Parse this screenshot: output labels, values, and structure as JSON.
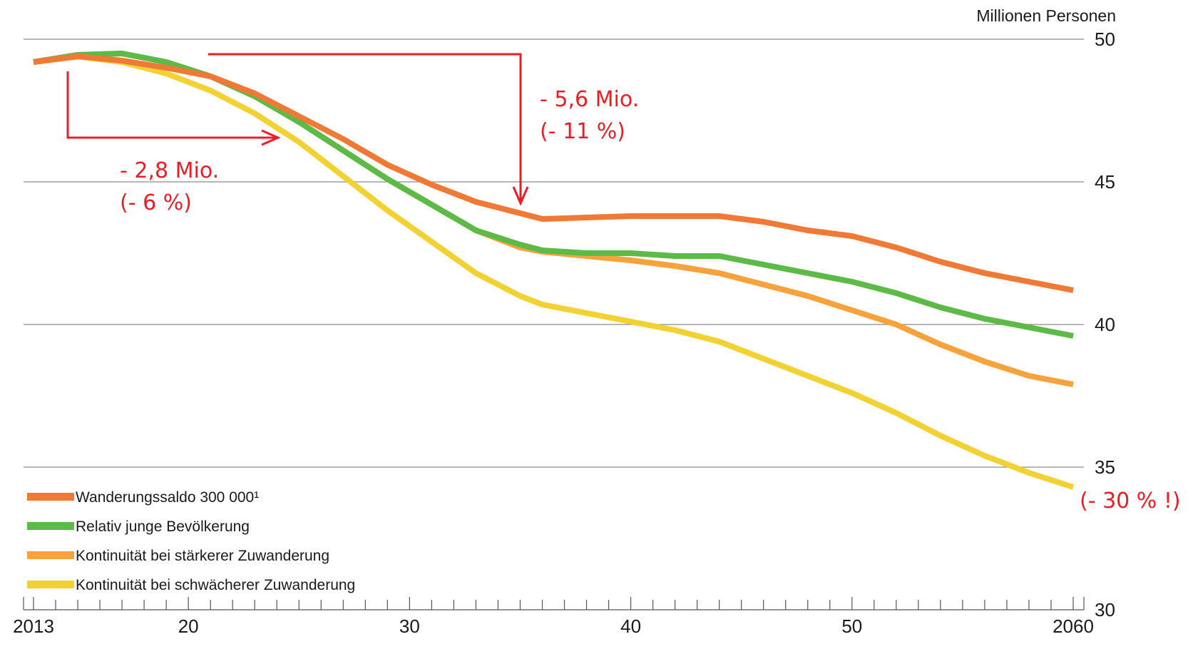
{
  "chart_data": {
    "type": "line",
    "title": "",
    "xlabel": "",
    "ylabel": "",
    "unit_label": "Millionen Personen",
    "xlim": [
      2013,
      2060
    ],
    "ylim": [
      30,
      50
    ],
    "x_ticks": [
      2013,
      2020,
      2030,
      2040,
      2050,
      2060
    ],
    "x_tick_labels": [
      "2013",
      "20",
      "30",
      "40",
      "50",
      "2060"
    ],
    "y_ticks": [
      30,
      35,
      40,
      45,
      50
    ],
    "y_tick_labels": [
      "30",
      "35",
      "40",
      "45",
      "50"
    ],
    "grid": true,
    "y_axis_position": "right",
    "legend_placement": "bottom-left",
    "series": [
      {
        "name": "Wanderungssaldo 300 000¹",
        "color": "#f07a35",
        "x": [
          2013,
          2015,
          2017,
          2019,
          2021,
          2023,
          2025,
          2027,
          2029,
          2031,
          2033,
          2035,
          2036,
          2038,
          2040,
          2042,
          2044,
          2046,
          2048,
          2050,
          2052,
          2054,
          2056,
          2058,
          2060
        ],
        "values": [
          49.2,
          49.4,
          49.25,
          49.0,
          48.7,
          48.1,
          47.3,
          46.5,
          45.6,
          44.9,
          44.3,
          43.9,
          43.7,
          43.75,
          43.8,
          43.8,
          43.8,
          43.6,
          43.3,
          43.1,
          42.7,
          42.2,
          41.8,
          41.5,
          41.2
        ]
      },
      {
        "name": "Relativ junge Bevölkerung",
        "color": "#5cba47",
        "x": [
          2013,
          2015,
          2017,
          2019,
          2021,
          2023,
          2025,
          2027,
          2029,
          2031,
          2033,
          2035,
          2036,
          2038,
          2040,
          2042,
          2044,
          2046,
          2048,
          2050,
          2052,
          2054,
          2056,
          2058,
          2060
        ],
        "values": [
          49.2,
          49.45,
          49.5,
          49.2,
          48.7,
          48.0,
          47.1,
          46.1,
          45.1,
          44.2,
          43.3,
          42.8,
          42.6,
          42.5,
          42.5,
          42.4,
          42.4,
          42.1,
          41.8,
          41.5,
          41.1,
          40.6,
          40.2,
          39.9,
          39.6
        ]
      },
      {
        "name": "Kontinuität bei stärkerer Zuwanderung",
        "color": "#f7a23b",
        "x": [
          2013,
          2015,
          2017,
          2019,
          2021,
          2023,
          2025,
          2027,
          2029,
          2031,
          2033,
          2035,
          2036,
          2038,
          2040,
          2042,
          2044,
          2046,
          2048,
          2050,
          2052,
          2054,
          2056,
          2058,
          2060
        ],
        "values": [
          49.2,
          49.45,
          49.5,
          49.2,
          48.7,
          48.0,
          47.1,
          46.1,
          45.1,
          44.2,
          43.3,
          42.7,
          42.55,
          42.4,
          42.25,
          42.05,
          41.8,
          41.4,
          41.0,
          40.5,
          40.0,
          39.3,
          38.7,
          38.2,
          37.9
        ]
      },
      {
        "name": "Kontinuität bei schwächerer Zuwanderung",
        "color": "#f2d133",
        "x": [
          2013,
          2015,
          2017,
          2019,
          2021,
          2023,
          2025,
          2027,
          2029,
          2031,
          2033,
          2035,
          2036,
          2038,
          2040,
          2042,
          2044,
          2046,
          2048,
          2050,
          2052,
          2054,
          2056,
          2058,
          2060
        ],
        "values": [
          49.2,
          49.4,
          49.2,
          48.8,
          48.2,
          47.4,
          46.4,
          45.2,
          44.0,
          42.9,
          41.8,
          41.0,
          40.7,
          40.4,
          40.1,
          39.8,
          39.4,
          38.8,
          38.2,
          37.6,
          36.9,
          36.1,
          35.4,
          34.8,
          34.3
        ]
      }
    ],
    "annotations": [
      {
        "line1": "- 2,8 Mio.",
        "line2": "(- 6 %)"
      },
      {
        "line1": "- 5,6 Mio.",
        "line2": "(- 11 %)"
      },
      {
        "line1": "(- 30 % !)"
      }
    ],
    "annotation_color": "#ee1c24"
  }
}
